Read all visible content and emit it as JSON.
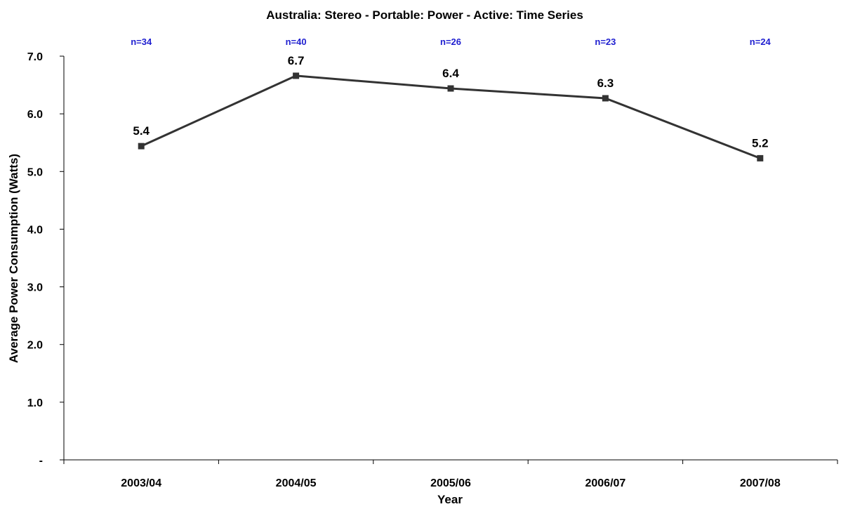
{
  "chart_data": {
    "type": "line",
    "title": "Australia: Stereo - Portable: Power - Active: Time Series",
    "xlabel": "Year",
    "ylabel": "Average Power Consumption (Watts)",
    "categories": [
      "2003/04",
      "2004/05",
      "2005/06",
      "2006/07",
      "2007/08"
    ],
    "series": [
      {
        "values": [
          5.44,
          6.66,
          6.44,
          6.27,
          5.23
        ],
        "data_labels": [
          "5.4",
          "6.7",
          "6.4",
          "6.3",
          "5.2"
        ],
        "color": "#333333"
      }
    ],
    "sample_sizes": [
      "n=34",
      "n=40",
      "n=26",
      "n=23",
      "n=24"
    ],
    "sample_size_color": "#1f1fd0",
    "ylim": [
      0,
      7
    ],
    "yticks": [
      0,
      1,
      2,
      3,
      4,
      5,
      6,
      7
    ],
    "ytick_labels": [
      "-",
      "1.0",
      "2.0",
      "3.0",
      "4.0",
      "5.0",
      "6.0",
      "7.0"
    ],
    "grid": false,
    "legend": "none",
    "marker": "square"
  }
}
